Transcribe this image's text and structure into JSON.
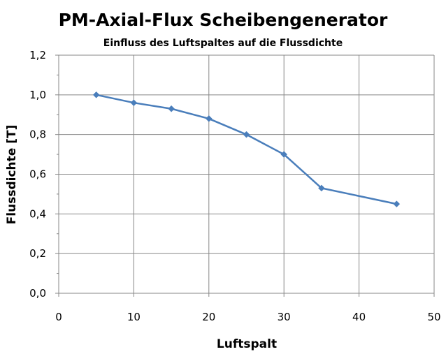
{
  "chart_data": {
    "type": "line",
    "title": "PM-Axial-Flux Scheibengenerator",
    "subtitle": "Einfluss des Luftspaltes auf die Flussdichte",
    "xlabel": "Luftspalt",
    "ylabel": "Flussdichte [T]",
    "xlim": [
      0,
      50
    ],
    "ylim": [
      0,
      1.2
    ],
    "x_ticks": [
      "0",
      "10",
      "20",
      "30",
      "40",
      "50"
    ],
    "y_ticks": [
      "0,0",
      "0,2",
      "0,4",
      "0,6",
      "0,8",
      "1,0",
      "1,2"
    ],
    "grid": true,
    "legend": "none",
    "series": [
      {
        "color": "#4a7ebb",
        "x": [
          5,
          10,
          15,
          20,
          25,
          30,
          35,
          45
        ],
        "y": [
          1.0,
          0.96,
          0.93,
          0.88,
          0.8,
          0.7,
          0.53,
          0.45
        ]
      }
    ]
  }
}
